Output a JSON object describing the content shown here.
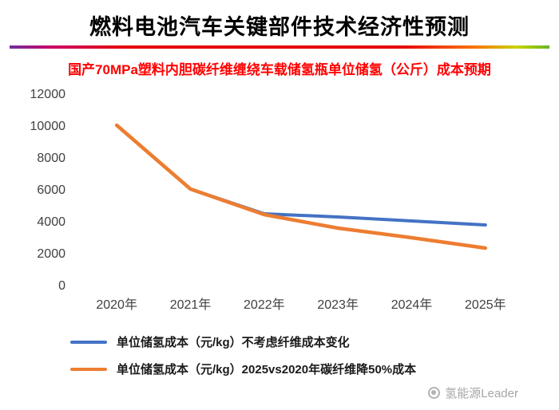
{
  "header": {
    "title": "燃料电池汽车关键部件技术经济性预测",
    "subtitle": "国产70MPa塑料内胆碳纤维缠绕车载储氢瓶单位储氢（公斤）成本预期"
  },
  "colors": {
    "title": "#000000",
    "subtitle": "#ff0000",
    "series_blue": "#4472c4",
    "series_orange": "#ed7d31"
  },
  "chart_data": {
    "type": "line",
    "title": "国产70MPa塑料内胆碳纤维缠绕车载储氢瓶单位储氢（公斤）成本预期",
    "categories": [
      "2020年",
      "2021年",
      "2022年",
      "2023年",
      "2024年",
      "2025年"
    ],
    "series": [
      {
        "name": "单位储氢成本（元/kg）不考虑纤维成本变化",
        "color": "#4472c4",
        "values": [
          10000,
          6000,
          4450,
          4250,
          4000,
          3750
        ]
      },
      {
        "name": "单位储氢成本（元/kg）2025vs2020年碳纤维降50%成本",
        "color": "#ed7d31",
        "values": [
          10000,
          6000,
          4400,
          3550,
          2950,
          2300
        ]
      }
    ],
    "xlabel": "",
    "ylabel": "",
    "ylim": [
      0,
      12000
    ],
    "yticks": [
      0,
      2000,
      4000,
      6000,
      8000,
      10000,
      12000
    ],
    "grid": false,
    "legend_position": "bottom-left"
  },
  "watermark": {
    "text": "氢能源Leader"
  }
}
